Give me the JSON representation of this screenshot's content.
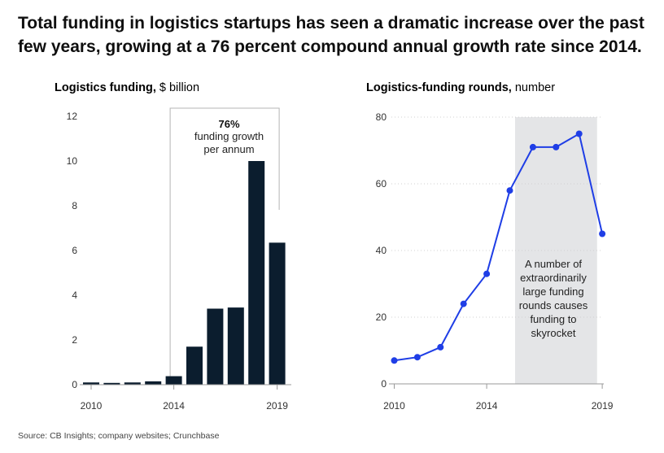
{
  "headline": "Total funding in logistics startups has seen a dramatic increase over the past few years, growing at a 76 percent compound annual growth rate since 2014.",
  "source": "Source: CB Insights; company websites; Crunchbase",
  "colors": {
    "bar": "#0b1d2e",
    "line": "#1f3ee6",
    "highlight": "#e4e5e7",
    "axis": "#999999"
  },
  "chart_data": [
    {
      "type": "bar",
      "title_bold": "Logistics funding,",
      "title_unit": " $ billion",
      "x": [
        2010,
        2011,
        2012,
        2013,
        2014,
        2015,
        2016,
        2017,
        2018,
        2019
      ],
      "values": [
        0.1,
        0.08,
        0.1,
        0.15,
        0.38,
        1.7,
        3.4,
        3.45,
        10.0,
        6.35
      ],
      "ylim": [
        0,
        12
      ],
      "yticks": [
        0,
        2,
        4,
        6,
        8,
        10,
        12
      ],
      "xtick_labels": [
        "2010",
        "2014",
        "2019"
      ],
      "annotation": {
        "value": "76%",
        "line1": "funding growth",
        "line2": "per annum",
        "span": [
          2014,
          2019
        ]
      }
    },
    {
      "type": "line",
      "title_bold": "Logistics-funding rounds,",
      "title_unit": " number",
      "x": [
        2010,
        2011,
        2012,
        2013,
        2014,
        2015,
        2016,
        2017,
        2018,
        2019
      ],
      "values": [
        7,
        8,
        11,
        24,
        33,
        58,
        71,
        71,
        75,
        45
      ],
      "ylim": [
        0,
        80
      ],
      "yticks": [
        0,
        20,
        40,
        60,
        80
      ],
      "xtick_labels": [
        "2010",
        "2014",
        "2019"
      ],
      "highlight": {
        "from": 2015,
        "to": 2018.6,
        "text": [
          "A number of",
          "extraordinarily",
          "large funding",
          "rounds causes",
          "funding to",
          "skyrocket"
        ]
      }
    }
  ]
}
